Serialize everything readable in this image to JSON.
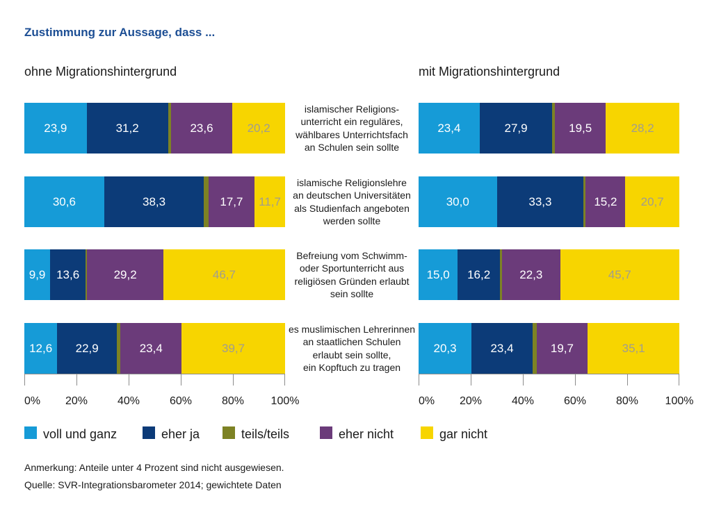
{
  "chart_data": {
    "type": "bar",
    "orientation": "horizontal",
    "stacking": "percent",
    "title": "Zustimmung zur Aussage, dass ...",
    "panels": [
      "ohne Migrationshintergrund",
      "mit Migrationshintergrund"
    ],
    "categories": [
      "islamischer Religions-\nunterricht ein reguläres,\nwählbares Unterrichtsfach\nan Schulen sein sollte",
      "islamische Religionslehre\nan deutschen Universitäten\nals Studienfach angeboten\nwerden sollte",
      "Befreiung vom Schwimm-\noder Sportunterricht aus\nreligiösen Gründen erlaubt\nsein sollte",
      "es muslimischen Lehrerinnen\nan staatlichen Schulen\nerlaubt sein sollte,\nein Kopftuch zu tragen"
    ],
    "series": [
      {
        "name": "voll und ganz",
        "color": "#169bd7",
        "values": [
          [
            23.9,
            30.6,
            9.9,
            12.6
          ],
          [
            23.4,
            30.0,
            15.0,
            20.3
          ]
        ]
      },
      {
        "name": "eher ja",
        "color": "#0c3b78",
        "values": [
          [
            31.2,
            38.3,
            13.6,
            22.9
          ],
          [
            27.9,
            33.3,
            16.2,
            23.4
          ]
        ]
      },
      {
        "name": "teils/teils",
        "color": "#7d8224",
        "values": [
          [
            1.1,
            1.7,
            0.6,
            1.4
          ],
          [
            1.0,
            0.8,
            0.8,
            1.5
          ]
        ]
      },
      {
        "name": "eher nicht",
        "color": "#6b3b7a",
        "values": [
          [
            23.6,
            17.7,
            29.2,
            23.4
          ],
          [
            19.5,
            15.2,
            22.3,
            19.7
          ]
        ]
      },
      {
        "name": "gar nicht",
        "color": "#f7d500",
        "values": [
          [
            20.2,
            11.7,
            46.7,
            39.7
          ],
          [
            28.2,
            20.7,
            45.7,
            35.1
          ]
        ]
      }
    ],
    "xlim": [
      0,
      100
    ],
    "xticks": [
      "0%",
      "20%",
      "40%",
      "60%",
      "80%",
      "100%"
    ],
    "grid": false,
    "legend_position": "bottom"
  },
  "notes": [
    "Anmerkung: Anteile unter 4 Prozent sind nicht ausgewiesen.",
    "Quelle: SVR-Integrationsbarometer 2014; gewichtete Daten"
  ]
}
